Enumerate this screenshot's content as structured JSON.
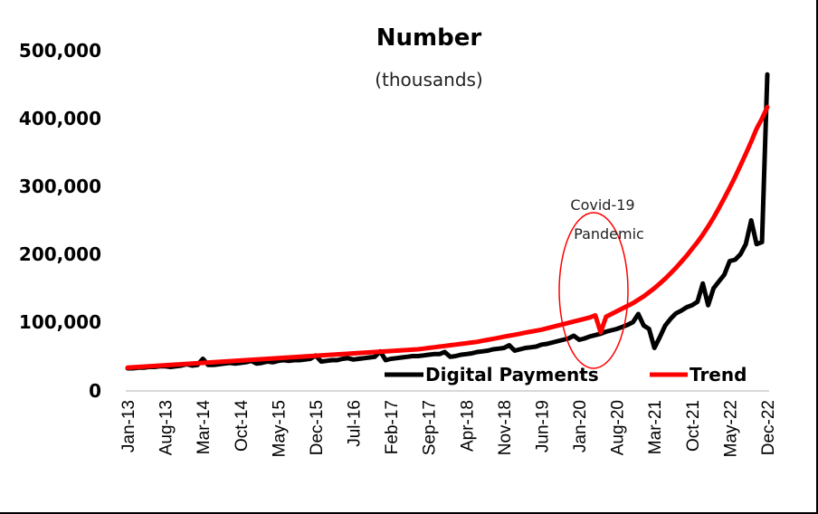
{
  "chart_data": {
    "type": "line",
    "title": "Number",
    "subtitle": "(thousands)",
    "xlabel": "",
    "ylabel": "",
    "ylim": [
      0,
      500000
    ],
    "yticks": [
      "500,000",
      "400,000",
      "300,000",
      "200,000",
      "100,000",
      "0"
    ],
    "ytick_values": [
      500000,
      400000,
      300000,
      200000,
      100000,
      0
    ],
    "grid": false,
    "legend_position": "bottom-inside",
    "x_start": "Jan-13",
    "x_end": "Dec-22",
    "x_frequency": "monthly",
    "xtick_labels": [
      "Jan-13",
      "Aug-13",
      "Mar-14",
      "Oct-14",
      "May-15",
      "Dec-15",
      "Jul-16",
      "Feb-17",
      "Sep-17",
      "Apr-18",
      "Nov-18",
      "Jun-19",
      "Jan-20",
      "Aug-20",
      "Mar-21",
      "Oct-21",
      "May-22",
      "Dec-22"
    ],
    "series": [
      {
        "name": "Digital Payments",
        "color": "#000000",
        "values": [
          32000,
          32000,
          33000,
          33000,
          34000,
          34000,
          35000,
          35000,
          34000,
          35000,
          36000,
          38000,
          36000,
          37000,
          46000,
          37000,
          37000,
          38000,
          39000,
          40000,
          39000,
          40000,
          41000,
          43000,
          39000,
          40000,
          42000,
          41000,
          43000,
          44000,
          43000,
          44000,
          44000,
          45000,
          46000,
          51000,
          42000,
          43000,
          44000,
          44000,
          46000,
          47000,
          45000,
          46000,
          47000,
          48000,
          49000,
          57000,
          44000,
          46000,
          47000,
          48000,
          49000,
          50000,
          50000,
          51000,
          52000,
          53000,
          53000,
          56000,
          49000,
          50000,
          52000,
          53000,
          54000,
          56000,
          57000,
          58000,
          60000,
          61000,
          62000,
          66000,
          58000,
          60000,
          62000,
          63000,
          64000,
          67000,
          68000,
          70000,
          72000,
          74000,
          76000,
          80000,
          74000,
          76000,
          79000,
          81000,
          83000,
          86000,
          88000,
          90000,
          93000,
          96000,
          100000,
          112000,
          95000,
          90000,
          62000,
          78000,
          95000,
          105000,
          113000,
          117000,
          122000,
          125000,
          130000,
          157000,
          125000,
          150000,
          160000,
          170000,
          190000,
          192000,
          200000,
          215000,
          250000,
          215000,
          218000,
          465000
        ]
      },
      {
        "name": "Trend",
        "color": "#ff0000",
        "values": [
          33000,
          33500,
          34000,
          34500,
          35000,
          35500,
          36000,
          36500,
          37000,
          37500,
          38000,
          38500,
          39000,
          39500,
          40000,
          40500,
          41000,
          41500,
          42000,
          42500,
          43000,
          43500,
          44000,
          44500,
          45000,
          45500,
          46000,
          46500,
          47000,
          47500,
          48000,
          48500,
          49000,
          49500,
          50000,
          50500,
          51000,
          51500,
          52000,
          52500,
          53000,
          53500,
          54000,
          54500,
          55000,
          55500,
          56000,
          56500,
          57000,
          57500,
          58000,
          58500,
          59000,
          59500,
          60000,
          61000,
          62000,
          63000,
          64000,
          65000,
          66000,
          67000,
          68000,
          69000,
          70000,
          71000,
          72500,
          74000,
          75500,
          77000,
          78500,
          80000,
          81500,
          83000,
          84500,
          86000,
          87500,
          89000,
          91000,
          93000,
          95000,
          97000,
          99000,
          101000,
          103000,
          105000,
          107000,
          110000,
          85000,
          108000,
          112000,
          116000,
          120000,
          124000,
          128000,
          133000,
          138000,
          144000,
          150000,
          157000,
          164000,
          172000,
          180000,
          189000,
          198000,
          208000,
          218000,
          229000,
          241000,
          254000,
          268000,
          283000,
          298000,
          314000,
          331000,
          348000,
          366000,
          385000,
          400000,
          417000
        ]
      }
    ],
    "annotations": [
      {
        "text_line1": "Covid-19",
        "text_line2": "Pandemic",
        "shape": "ellipse",
        "color": "#ff0000",
        "around": "Jan-20 to Aug-20"
      }
    ]
  },
  "legend": {
    "items": [
      {
        "label": "Digital Payments",
        "color": "#000000"
      },
      {
        "label": "Trend",
        "color": "#ff0000"
      }
    ]
  },
  "annotation": {
    "line1": "Covid-19",
    "line2": "Pandemic"
  }
}
